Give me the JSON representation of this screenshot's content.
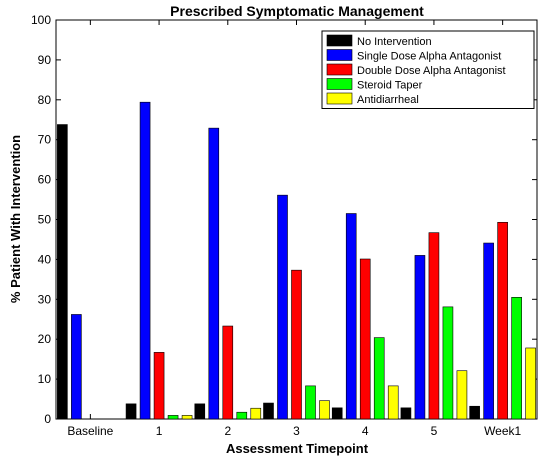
{
  "chart_data": {
    "type": "bar",
    "title": "Prescribed Symptomatic Management",
    "xlabel": "Assessment Timepoint",
    "ylabel": "% Patient With Intervention",
    "ylim": [
      0,
      100
    ],
    "yticks": [
      0,
      10,
      20,
      30,
      40,
      50,
      60,
      70,
      80,
      90,
      100
    ],
    "categories": [
      "Baseline",
      "1",
      "2",
      "3",
      "4",
      "5",
      "Week1"
    ],
    "legend_position": "top-right",
    "grid": false,
    "series": [
      {
        "name": "No Intervention",
        "color": "#000000",
        "values": [
          73.8,
          3.8,
          3.8,
          4.0,
          2.8,
          2.8,
          3.2
        ]
      },
      {
        "name": "Single Dose Alpha Antagonist",
        "color": "#0000ff",
        "values": [
          26.2,
          79.4,
          72.9,
          56.1,
          51.5,
          41.0,
          44.1
        ]
      },
      {
        "name": "Double Dose Alpha Antagonist",
        "color": "#ff0000",
        "values": [
          0,
          16.7,
          23.3,
          37.3,
          40.1,
          46.7,
          49.3
        ]
      },
      {
        "name": "Steroid Taper",
        "color": "#00ff00",
        "values": [
          0,
          0.9,
          1.7,
          8.3,
          20.4,
          28.1,
          30.5
        ]
      },
      {
        "name": "Antidiarrheal",
        "color": "#ffff00",
        "values": [
          0,
          0.9,
          2.7,
          4.6,
          8.3,
          12.1,
          17.8
        ]
      }
    ]
  }
}
